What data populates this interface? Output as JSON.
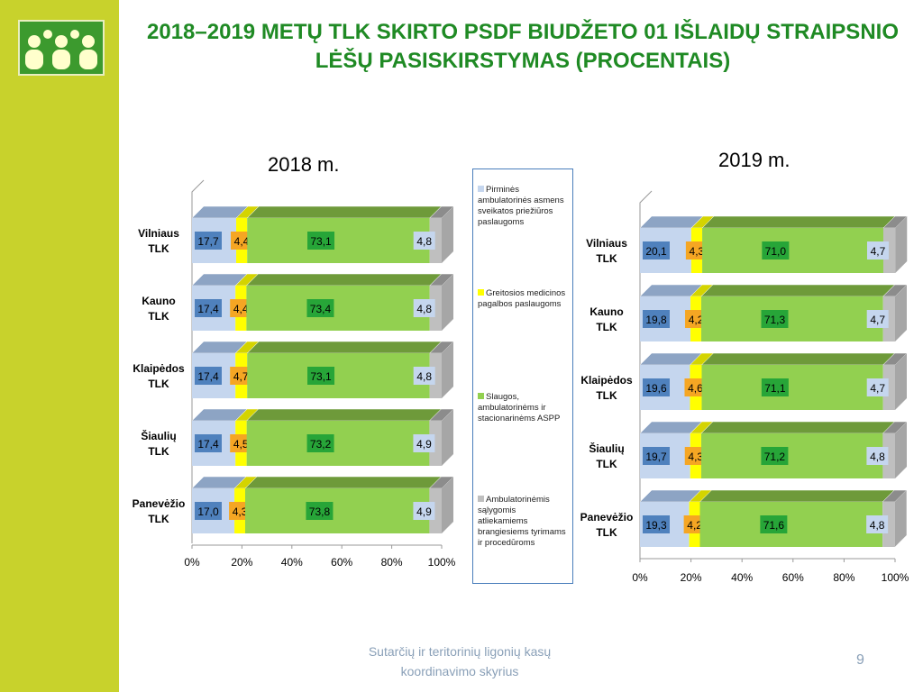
{
  "title": "2018–2019 METŲ TLK SKIRTO PSDF BIUDŽETO 01 IŠLAIDŲ STRAIPSNIO LĖŠŲ PASISKIRSTYMAS (PROCENTAIS)",
  "footer": {
    "line1": "Sutarčių ir teritorinių ligonių kasų",
    "line2": "koordinavimo skyrius",
    "page": "9"
  },
  "colors": {
    "sidebar": "#c8d22c",
    "title": "#1f8a24",
    "series": [
      "#c5d6ee",
      "#ffff00",
      "#92d050",
      "#bfbfbf"
    ],
    "series_top": [
      "#8da4c4",
      "#d4d400",
      "#6e9a3a",
      "#8c8c8c"
    ],
    "label_bg": [
      "#4f81bd",
      "#f5a623",
      "#27a538",
      "#c5d6ee"
    ]
  },
  "legend": [
    "Pirminės ambulatorinės asmens sveikatos priežiūros paslaugoms",
    "Greitosios medicinos pagalbos paslaugoms",
    "Slaugos, ambulatorinėms ir stacionarinėms ASPP",
    "Ambulatorinėmis sąlygomis atliekamiems brangiesiems tyrimams ir procedūroms"
  ],
  "chart_data": [
    {
      "type": "bar",
      "title": "2018 m.",
      "orientation": "horizontal-stacked-100",
      "categories": [
        "Vilniaus TLK",
        "Kauno TLK",
        "Klaipėdos TLK",
        "Šiaulių TLK",
        "Panevėžio TLK"
      ],
      "x_ticks": [
        "0%",
        "20%",
        "40%",
        "60%",
        "80%",
        "100%"
      ],
      "xlim": [
        0,
        100
      ],
      "series": [
        {
          "values": [
            17.7,
            17.4,
            17.4,
            17.4,
            17.0
          ],
          "labels": [
            "17,7",
            "17,4",
            "17,4",
            "17,4",
            "17,0"
          ]
        },
        {
          "values": [
            4.4,
            4.4,
            4.7,
            4.5,
            4.3
          ],
          "labels": [
            "4,4",
            "4,4",
            "4,7",
            "4,5",
            "4,3"
          ]
        },
        {
          "values": [
            73.1,
            73.4,
            73.1,
            73.2,
            73.8
          ],
          "labels": [
            "73,1",
            "73,4",
            "73,1",
            "73,2",
            "73,8"
          ]
        },
        {
          "values": [
            4.8,
            4.8,
            4.8,
            4.9,
            4.9
          ],
          "labels": [
            "4,8",
            "4,8",
            "4,8",
            "4,9",
            "4,9"
          ]
        }
      ]
    },
    {
      "type": "bar",
      "title": "2019 m.",
      "orientation": "horizontal-stacked-100",
      "categories": [
        "Vilniaus TLK",
        "Kauno TLK",
        "Klaipėdos TLK",
        "Šiaulių TLK",
        "Panevėžio TLK"
      ],
      "x_ticks": [
        "0%",
        "20%",
        "40%",
        "60%",
        "80%",
        "100%"
      ],
      "xlim": [
        0,
        100
      ],
      "series": [
        {
          "values": [
            20.1,
            19.8,
            19.6,
            19.7,
            19.3
          ],
          "labels": [
            "20,1",
            "19,8",
            "19,6",
            "19,7",
            "19,3"
          ]
        },
        {
          "values": [
            4.3,
            4.2,
            4.6,
            4.3,
            4.2
          ],
          "labels": [
            "4,3",
            "4,2",
            "4,6",
            "4,3",
            "4,2"
          ]
        },
        {
          "values": [
            71.0,
            71.3,
            71.1,
            71.2,
            71.6
          ],
          "labels": [
            "71,0",
            "71,3",
            "71,1",
            "71,2",
            "71,6"
          ]
        },
        {
          "values": [
            4.7,
            4.7,
            4.7,
            4.8,
            4.8
          ],
          "labels": [
            "4,7",
            "4,7",
            "4,7",
            "4,8",
            "4,8"
          ]
        }
      ]
    }
  ]
}
